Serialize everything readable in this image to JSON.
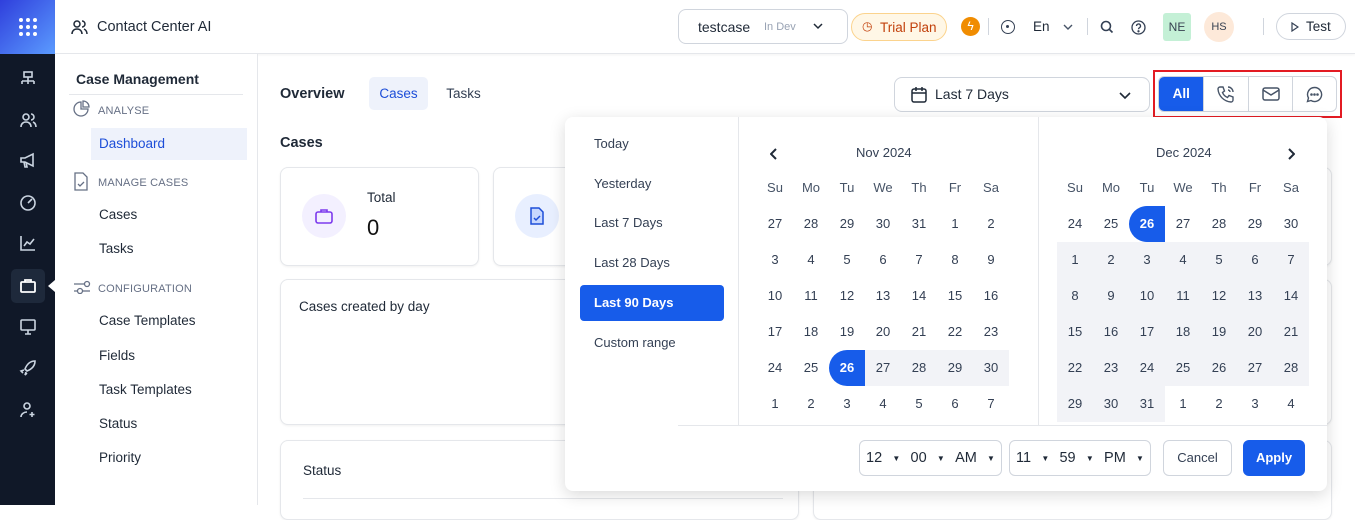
{
  "app": {
    "title": "Contact Center AI"
  },
  "topbar": {
    "workspace": "testcase",
    "env": "In Dev",
    "trial": "Trial Plan",
    "lang": "En",
    "avatar1": "NE",
    "avatar2": "HS",
    "test": "Test"
  },
  "sidebar": {
    "title": "Case Management",
    "sections": [
      {
        "label": "ANALYSE",
        "items": [
          "Dashboard"
        ]
      },
      {
        "label": "MANAGE CASES",
        "items": [
          "Cases",
          "Tasks"
        ]
      },
      {
        "label": "CONFIGURATION",
        "items": [
          "Case Templates",
          "Fields",
          "Task Templates",
          "Status",
          "Priority"
        ]
      }
    ],
    "active": "Dashboard"
  },
  "main": {
    "overview": "Overview",
    "tabs": [
      "Cases",
      "Tasks"
    ],
    "active_tab": "Cases",
    "section": "Cases",
    "total_label": "Total",
    "total_value": "0",
    "chart_title": "Cases created by day",
    "status_title": "Status",
    "date_filter": "Last 7 Days",
    "channels": [
      "All",
      "phone",
      "email",
      "chat"
    ],
    "active_channel": "All"
  },
  "datepicker": {
    "presets": [
      "Today",
      "Yesterday",
      "Last 7 Days",
      "Last 28 Days",
      "Last 90 Days",
      "Custom range"
    ],
    "active_preset": "Last 90 Days",
    "dow": [
      "Su",
      "Mo",
      "Tu",
      "We",
      "Th",
      "Fr",
      "Sa"
    ],
    "left": {
      "title": "Nov 2024",
      "days": [
        [
          "27",
          "28",
          "29",
          "30",
          "31",
          "1",
          "2"
        ],
        [
          "3",
          "4",
          "5",
          "6",
          "7",
          "8",
          "9"
        ],
        [
          "10",
          "11",
          "12",
          "13",
          "14",
          "15",
          "16"
        ],
        [
          "17",
          "18",
          "19",
          "20",
          "21",
          "22",
          "23"
        ],
        [
          "24",
          "25",
          "26",
          "27",
          "28",
          "29",
          "30"
        ],
        [
          "1",
          "2",
          "3",
          "4",
          "5",
          "6",
          "7"
        ]
      ],
      "states": [
        [
          "",
          "",
          "",
          "",
          "",
          "",
          ""
        ],
        [
          "",
          "",
          "",
          "",
          "",
          "",
          ""
        ],
        [
          "",
          "",
          "",
          "",
          "",
          "",
          ""
        ],
        [
          "",
          "",
          "",
          "",
          "",
          "",
          ""
        ],
        [
          "",
          "",
          "start",
          "in",
          "in",
          "in",
          "in"
        ],
        [
          "",
          "",
          "",
          "",
          "",
          "",
          ""
        ]
      ]
    },
    "right": {
      "title": "Dec 2024",
      "days": [
        [
          "24",
          "25",
          "26",
          "27",
          "28",
          "29",
          "30"
        ],
        [
          "1",
          "2",
          "3",
          "4",
          "5",
          "6",
          "7"
        ],
        [
          "8",
          "9",
          "10",
          "11",
          "12",
          "13",
          "14"
        ],
        [
          "15",
          "16",
          "17",
          "18",
          "19",
          "20",
          "21"
        ],
        [
          "22",
          "23",
          "24",
          "25",
          "26",
          "27",
          "28"
        ],
        [
          "29",
          "30",
          "31",
          "1",
          "2",
          "3",
          "4"
        ]
      ],
      "states": [
        [
          "",
          "",
          "start",
          "",
          "",
          "",
          ""
        ],
        [
          "in",
          "in",
          "in",
          "in",
          "in",
          "in",
          "in"
        ],
        [
          "in",
          "in",
          "in",
          "in",
          "in",
          "in",
          "in"
        ],
        [
          "in",
          "in",
          "in",
          "in",
          "in",
          "in",
          "in"
        ],
        [
          "in",
          "in",
          "in",
          "in",
          "in",
          "in",
          "in"
        ],
        [
          "in",
          "in",
          "in",
          "",
          "",
          "",
          ""
        ]
      ]
    },
    "start_time": {
      "hour": "12",
      "minute": "00",
      "ampm": "AM"
    },
    "end_time": {
      "hour": "11",
      "minute": "59",
      "ampm": "PM"
    },
    "cancel": "Cancel",
    "apply": "Apply"
  },
  "colors": {
    "accent": "#175cea",
    "highlight": "#e31b23"
  }
}
